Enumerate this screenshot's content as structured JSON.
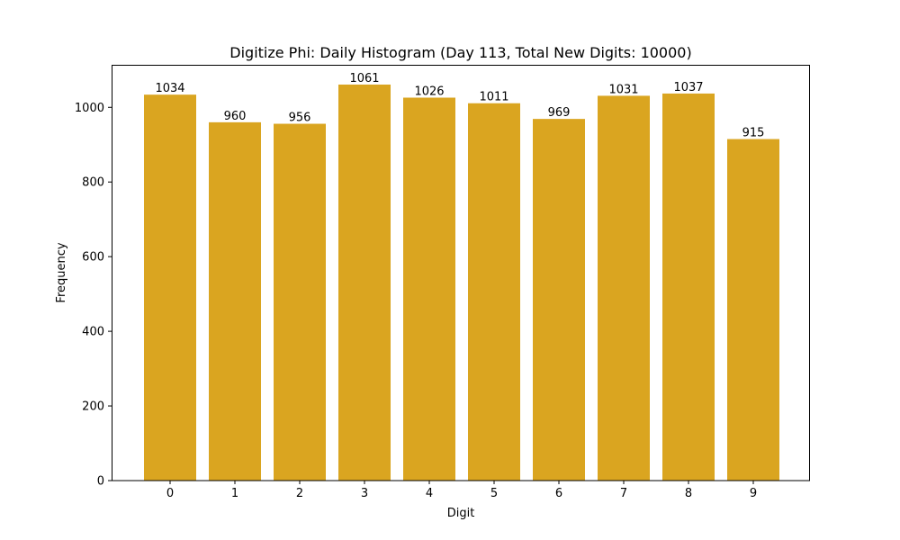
{
  "chart_data": {
    "type": "bar",
    "title": "Digitize Phi: Daily Histogram (Day 113, Total New Digits: 10000)",
    "xlabel": "Digit",
    "ylabel": "Frequency",
    "categories": [
      "0",
      "1",
      "2",
      "3",
      "4",
      "5",
      "6",
      "7",
      "8",
      "9"
    ],
    "values": [
      1034,
      960,
      956,
      1061,
      1026,
      1011,
      969,
      1031,
      1037,
      915
    ],
    "value_labels": [
      "1034",
      "960",
      "956",
      "1061",
      "1026",
      "1011",
      "969",
      "1031",
      "1037",
      "915"
    ],
    "yticks": [
      0,
      200,
      400,
      600,
      800,
      1000
    ],
    "ylim": [
      0,
      1114
    ],
    "grid": false,
    "legend": null,
    "bar_color": "#DAA520"
  }
}
